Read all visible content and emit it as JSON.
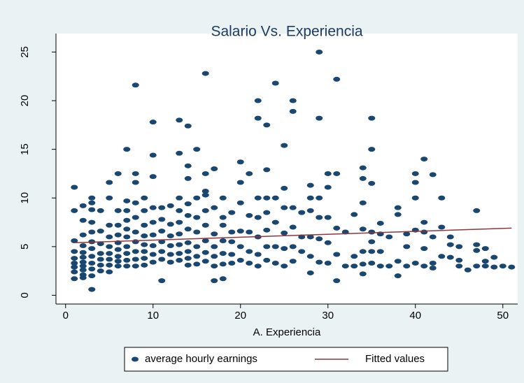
{
  "chart_data": {
    "type": "scatter",
    "title": "Salario Vs. Experiencia",
    "x_label": "A. Experiencia",
    "xlim": [
      -1.1,
      51.7
    ],
    "xticks": [
      0,
      10,
      20,
      30,
      40,
      50
    ],
    "ylim": [
      -0.9,
      26.9
    ],
    "yticks": [
      0,
      5,
      10,
      15,
      20,
      25
    ],
    "series": [
      {
        "name": "average hourly earnings",
        "color": "#1a476f",
        "kind": "scatter",
        "x": [
          1,
          1,
          1,
          1,
          1,
          1,
          1,
          1,
          1,
          2,
          2,
          2,
          2,
          2,
          2,
          2,
          2,
          2,
          2,
          2,
          3,
          3,
          3,
          3,
          3,
          3,
          3,
          3,
          3,
          3,
          3,
          3,
          4,
          4,
          4,
          4,
          4,
          4,
          4,
          5,
          5,
          5,
          5,
          5,
          5,
          5,
          5,
          5,
          6,
          6,
          6,
          6,
          6,
          6,
          6,
          6,
          6,
          7,
          7,
          7,
          7,
          7,
          7,
          7,
          7,
          7,
          7,
          8,
          8,
          8,
          8,
          8,
          8,
          8,
          8,
          8,
          8,
          9,
          9,
          9,
          9,
          9,
          9,
          9,
          9,
          10,
          10,
          10,
          10,
          10,
          10,
          10,
          10,
          10,
          11,
          11,
          11,
          11,
          11,
          11,
          11,
          12,
          12,
          12,
          12,
          12,
          12,
          13,
          13,
          13,
          13,
          13,
          13,
          13,
          13,
          13,
          14,
          14,
          14,
          14,
          14,
          14,
          14,
          14,
          14,
          14,
          15,
          15,
          15,
          15,
          15,
          15,
          15,
          16,
          16,
          16,
          16,
          16,
          16,
          16,
          16,
          16,
          17,
          17,
          17,
          17,
          17,
          17,
          17,
          18,
          18,
          18,
          18,
          18,
          18,
          18,
          19,
          19,
          19,
          19,
          19,
          20,
          20,
          20,
          20,
          20,
          20,
          21,
          21,
          21,
          21,
          21,
          22,
          22,
          22,
          22,
          22,
          22,
          22,
          23,
          23,
          23,
          23,
          23,
          23,
          23,
          24,
          24,
          24,
          24,
          24,
          25,
          25,
          25,
          25,
          25,
          25,
          26,
          26,
          26,
          26,
          26,
          26,
          27,
          27,
          27,
          28,
          28,
          28,
          28,
          28,
          28,
          29,
          29,
          29,
          29,
          29,
          29,
          30,
          30,
          30,
          30,
          30,
          31,
          31,
          31,
          31,
          31,
          32,
          32,
          33,
          33,
          33,
          34,
          34,
          34,
          34,
          34,
          34,
          34,
          35,
          35,
          35,
          35,
          35,
          35,
          35,
          36,
          36,
          36,
          36,
          37,
          37,
          38,
          38,
          38,
          38,
          39,
          39,
          39,
          40,
          40,
          40,
          40,
          40,
          41,
          41,
          41,
          41,
          41,
          42,
          42,
          42,
          42,
          43,
          43,
          43,
          44,
          44,
          44,
          45,
          45,
          45,
          46,
          47,
          47,
          47,
          47,
          48,
          48,
          48,
          49,
          49,
          50,
          51
        ],
        "values": [
          11.1,
          8.7,
          5.6,
          4.5,
          3.8,
          3.3,
          2.9,
          2.4,
          1.7,
          9.2,
          7.7,
          6.2,
          5.1,
          4.4,
          3.9,
          3.4,
          3.0,
          2.6,
          2.1,
          1.8,
          10.0,
          9.5,
          8.8,
          7.5,
          6.5,
          5.5,
          4.8,
          4.0,
          3.3,
          2.7,
          2.0,
          0.6,
          8.7,
          6.6,
          5.3,
          4.3,
          3.7,
          3.1,
          2.5,
          11.6,
          10.0,
          7.2,
          6.0,
          5.0,
          4.3,
          3.7,
          3.1,
          2.4,
          12.5,
          8.7,
          7.2,
          6.2,
          5.4,
          4.7,
          4.0,
          3.5,
          3.0,
          15.0,
          9.7,
          8.7,
          7.7,
          6.8,
          6.0,
          5.0,
          4.3,
          3.6,
          3.0,
          21.6,
          12.5,
          11.6,
          9.5,
          8.0,
          6.5,
          5.5,
          4.5,
          3.7,
          3.0,
          10.0,
          8.7,
          7.2,
          6.1,
          5.2,
          4.5,
          3.8,
          3.1,
          17.8,
          14.4,
          12.2,
          9.0,
          7.5,
          6.2,
          5.1,
          4.2,
          3.4,
          9.0,
          7.8,
          6.6,
          5.5,
          4.5,
          3.7,
          1.5,
          9.2,
          7.3,
          6.1,
          5.1,
          4.2,
          3.4,
          18.0,
          14.6,
          10.0,
          8.7,
          7.5,
          6.3,
          5.2,
          4.3,
          3.6,
          17.4,
          13.3,
          12.0,
          9.4,
          8.2,
          6.8,
          5.4,
          4.5,
          3.8,
          3.1,
          15.0,
          10.0,
          8.0,
          6.5,
          5.0,
          4.0,
          3.2,
          22.8,
          12.5,
          10.7,
          10.3,
          8.7,
          7.2,
          5.6,
          4.4,
          3.5,
          13.0,
          9.0,
          6.3,
          5.0,
          4.0,
          3.0,
          1.5,
          10.0,
          8.0,
          7.2,
          5.6,
          4.3,
          3.2,
          1.7,
          8.5,
          6.5,
          5.5,
          4.2,
          3.3,
          13.7,
          11.6,
          9.5,
          6.6,
          5.0,
          3.6,
          12.5,
          8.2,
          6.5,
          4.5,
          3.3,
          20.0,
          18.2,
          10.0,
          8.0,
          6.0,
          4.2,
          3.0,
          17.5,
          12.9,
          10.0,
          8.5,
          6.7,
          5.0,
          3.6,
          21.8,
          10.0,
          7.5,
          5.0,
          3.3,
          15.4,
          11.0,
          9.0,
          6.4,
          4.8,
          3.0,
          20.0,
          18.9,
          9.0,
          7.0,
          5.0,
          3.5,
          8.5,
          6.0,
          4.5,
          11.3,
          10.0,
          8.7,
          6.0,
          4.0,
          2.3,
          25.0,
          18.2,
          10.0,
          8.0,
          5.8,
          3.4,
          12.5,
          11.1,
          8.0,
          5.4,
          3.3,
          22.2,
          12.5,
          6.9,
          4.2,
          1.5,
          6.5,
          3.0,
          8.3,
          4.0,
          3.0,
          13.1,
          12.0,
          9.5,
          6.8,
          4.5,
          3.2,
          2.2,
          18.2,
          15.0,
          11.5,
          6.5,
          5.5,
          4.5,
          3.3,
          7.4,
          6.3,
          4.5,
          3.0,
          6.0,
          3.0,
          9.0,
          8.3,
          3.5,
          2.0,
          6.3,
          5.0,
          3.0,
          12.5,
          11.6,
          10.0,
          6.7,
          3.3,
          14.0,
          7.5,
          6.5,
          4.8,
          3.0,
          12.4,
          6.0,
          3.3,
          2.8,
          10.0,
          7.0,
          4.0,
          6.0,
          5.2,
          3.9,
          5.0,
          3.6,
          3.0,
          2.6,
          8.7,
          5.2,
          4.6,
          3.0,
          4.8,
          3.5,
          3.0,
          3.9,
          2.9,
          3.0,
          2.9
        ]
      },
      {
        "name": "Fitted values",
        "color": "#90353b",
        "kind": "line",
        "x": [
          1,
          51
        ],
        "values": [
          5.4,
          6.9
        ]
      }
    ]
  }
}
